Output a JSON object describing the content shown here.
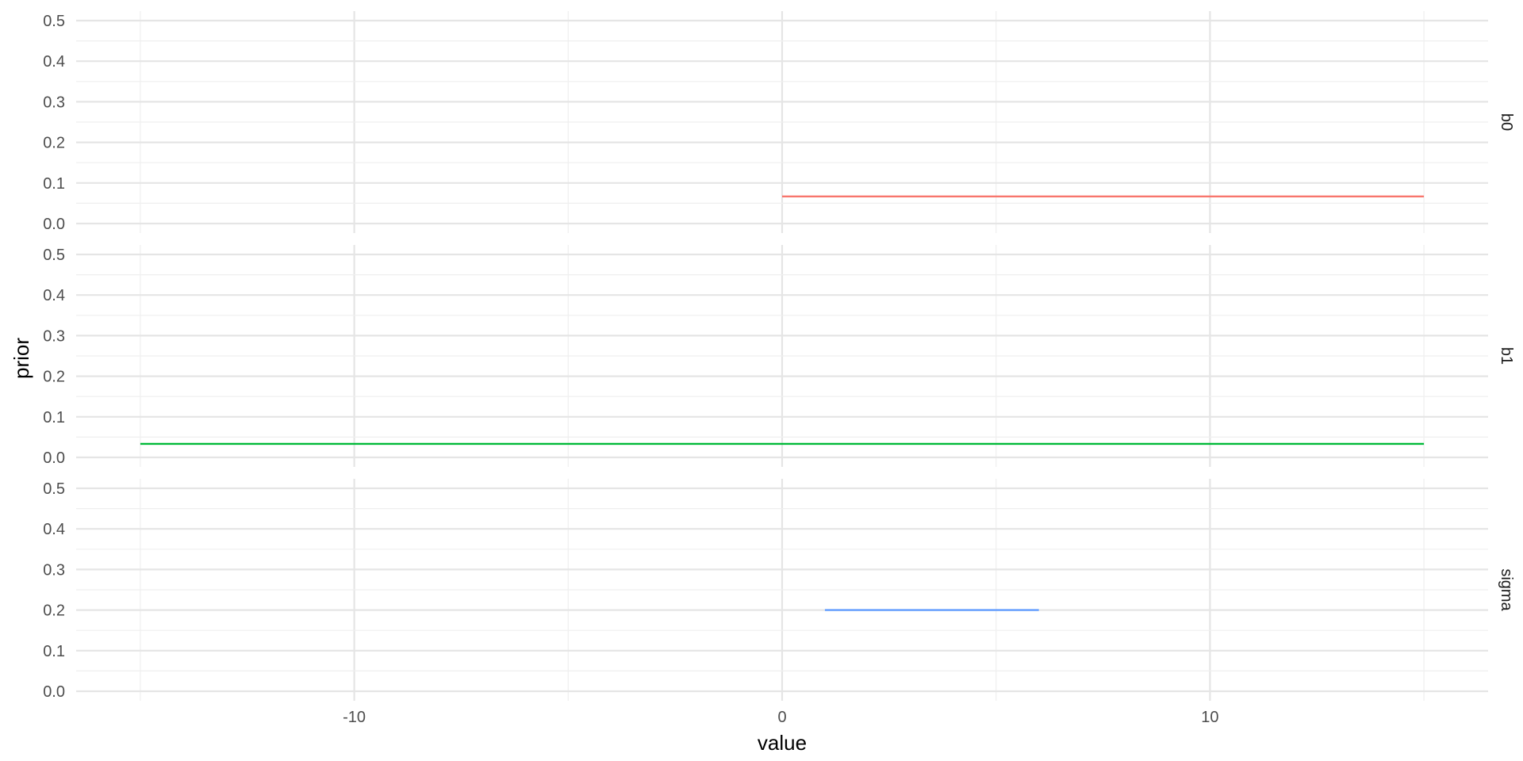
{
  "chart_data": {
    "type": "line",
    "xlabel": "value",
    "ylabel": "prior",
    "xlim": [
      -15,
      15
    ],
    "ylim": [
      0,
      0.5
    ],
    "x_ticks": [
      -10,
      0,
      10
    ],
    "x_tick_labels": [
      "-10",
      "0",
      "10"
    ],
    "y_ticks": [
      0,
      0.1,
      0.2,
      0.3,
      0.4,
      0.5
    ],
    "y_tick_labels": [
      "0.0",
      "0.1",
      "0.2",
      "0.3",
      "0.4",
      "0.5"
    ],
    "grid": true,
    "legend": "none",
    "facets": [
      {
        "label": "b0",
        "color": "#F8766D",
        "x": [
          0,
          15
        ],
        "y": [
          0.0667,
          0.0667
        ]
      },
      {
        "label": "b1",
        "color": "#00BA38",
        "x": [
          -15,
          15
        ],
        "y": [
          0.0333,
          0.0333
        ]
      },
      {
        "label": "sigma",
        "color": "#619CFF",
        "x": [
          1,
          6
        ],
        "y": [
          0.2,
          0.2
        ]
      }
    ]
  }
}
